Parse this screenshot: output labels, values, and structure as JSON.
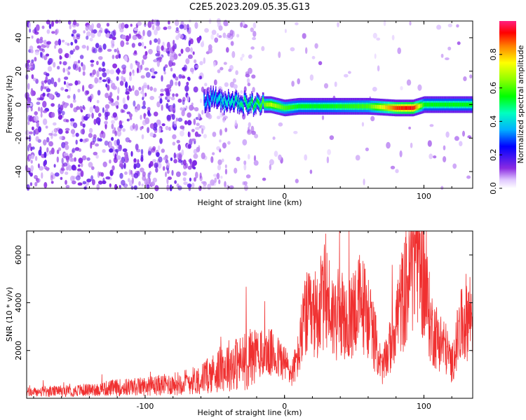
{
  "title": "C2E5.2023.209.05.35.G13",
  "chart_data": [
    {
      "type": "heatmap",
      "xlabel": "Height of straight line (km)",
      "ylabel": "Frequency (Hz)",
      "xlim": [
        -185,
        135
      ],
      "ylim": [
        -50,
        50
      ],
      "xticks": [
        "-100",
        "0",
        "100"
      ],
      "yticks": [
        "-40",
        "-20",
        "0",
        "20",
        "40"
      ],
      "colorbar": {
        "label": "Normalized spectral amplitude",
        "ticks": [
          "0.0",
          "0.2",
          "0.4",
          "0.6",
          "0.8"
        ],
        "range": [
          0,
          1
        ]
      },
      "ridge": [
        {
          "x": -58,
          "freq": 2,
          "amp": 0.35
        },
        {
          "x": -50,
          "freq": 5,
          "amp": 0.4
        },
        {
          "x": -45,
          "freq": 1,
          "amp": 0.45
        },
        {
          "x": -40,
          "freq": 3,
          "amp": 0.45
        },
        {
          "x": -30,
          "freq": 1,
          "amp": 0.5
        },
        {
          "x": -20,
          "freq": 0,
          "amp": 0.55
        },
        {
          "x": -10,
          "freq": 0,
          "amp": 0.7
        },
        {
          "x": 0,
          "freq": -2,
          "amp": 0.6
        },
        {
          "x": 10,
          "freq": -1,
          "amp": 0.55
        },
        {
          "x": 30,
          "freq": -1,
          "amp": 0.55
        },
        {
          "x": 60,
          "freq": -1,
          "amp": 0.6
        },
        {
          "x": 80,
          "freq": -2,
          "amp": 0.9
        },
        {
          "x": 92,
          "freq": -2,
          "amp": 0.95
        },
        {
          "x": 100,
          "freq": 0,
          "amp": 0.55
        },
        {
          "x": 135,
          "freq": 0,
          "amp": 0.55
        }
      ]
    },
    {
      "type": "line",
      "xlabel": "Height of straight line (km)",
      "ylabel": "SNR (10 * v/v)",
      "xlim": [
        -185,
        135
      ],
      "ylim": [
        0,
        7000
      ],
      "xticks": [
        "-100",
        "0",
        "100"
      ],
      "yticks": [
        "2000",
        "4000",
        "6000"
      ],
      "color": "#f03030",
      "envelope": {
        "x": [
          -185,
          -160,
          -140,
          -120,
          -100,
          -80,
          -60,
          -50,
          -40,
          -30,
          -20,
          -10,
          0,
          5,
          10,
          15,
          20,
          25,
          30,
          35,
          40,
          45,
          50,
          55,
          60,
          65,
          70,
          75,
          80,
          85,
          90,
          95,
          100,
          105,
          110,
          115,
          120,
          125,
          130,
          135
        ],
        "y": [
          250,
          300,
          350,
          450,
          500,
          600,
          800,
          1100,
          1400,
          1500,
          1800,
          1900,
          1500,
          1000,
          1800,
          3500,
          3300,
          3800,
          4300,
          3400,
          3600,
          2900,
          3800,
          4000,
          3500,
          2400,
          1200,
          2000,
          3300,
          4200,
          5200,
          6600,
          5000,
          3000,
          2500,
          2200,
          1400,
          2700,
          3400,
          3600
        ]
      }
    }
  ]
}
